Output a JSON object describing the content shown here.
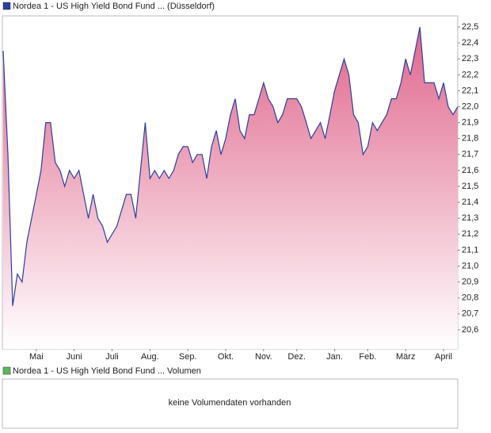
{
  "chart_data": {
    "type": "area",
    "categories": [
      "",
      null,
      null,
      null,
      null,
      null,
      null,
      "Mai",
      null,
      null,
      null,
      null,
      null,
      null,
      null,
      "Juni",
      null,
      null,
      null,
      null,
      null,
      null,
      null,
      "Juli",
      null,
      null,
      null,
      null,
      null,
      null,
      null,
      "Aug.",
      null,
      null,
      null,
      null,
      null,
      null,
      null,
      "Sep.",
      null,
      null,
      null,
      null,
      null,
      null,
      null,
      "Okt.",
      null,
      null,
      null,
      null,
      null,
      null,
      null,
      "Nov.",
      null,
      null,
      null,
      null,
      null,
      null,
      "Dez.",
      null,
      null,
      null,
      null,
      null,
      null,
      null,
      "Jan.",
      null,
      null,
      null,
      null,
      null,
      null,
      "Feb.",
      null,
      null,
      null,
      null,
      null,
      null,
      null,
      "März",
      null,
      null,
      null,
      null,
      null,
      null,
      null,
      "April",
      null,
      null,
      null
    ],
    "series": [
      {
        "name": "Nordea 1 - US High Yield Bond Fund ... (Düsseldorf)",
        "color": "#2a3f9e",
        "values": [
          22.35,
          21.7,
          20.75,
          20.95,
          20.9,
          21.15,
          21.3,
          21.45,
          21.6,
          21.9,
          21.9,
          21.65,
          21.6,
          21.5,
          21.6,
          21.55,
          21.6,
          21.45,
          21.3,
          21.45,
          21.3,
          21.25,
          21.15,
          21.2,
          21.25,
          21.35,
          21.45,
          21.45,
          21.3,
          21.6,
          21.9,
          21.55,
          21.6,
          21.55,
          21.6,
          21.55,
          21.6,
          21.7,
          21.75,
          21.75,
          21.65,
          21.7,
          21.7,
          21.55,
          21.75,
          21.85,
          21.7,
          21.8,
          21.95,
          22.05,
          21.85,
          21.8,
          21.95,
          21.95,
          22.05,
          22.15,
          22.05,
          22.0,
          21.9,
          21.95,
          22.05,
          22.05,
          22.05,
          22.0,
          21.9,
          21.8,
          21.85,
          21.9,
          21.8,
          21.95,
          22.1,
          22.2,
          22.3,
          22.2,
          21.95,
          21.9,
          21.7,
          21.75,
          21.9,
          21.85,
          21.9,
          21.95,
          22.05,
          22.05,
          22.15,
          22.3,
          22.2,
          22.35,
          22.5,
          22.15,
          22.15,
          22.15,
          22.05,
          22.15,
          22.0,
          21.95,
          22.0
        ]
      }
    ],
    "fill_color": "#e0668c",
    "ylim": [
      20.48,
      22.57
    ],
    "yticks": [
      {
        "value": 20.6,
        "label": "20,6"
      },
      {
        "value": 20.7,
        "label": "20,7"
      },
      {
        "value": 20.8,
        "label": "20,8"
      },
      {
        "value": 20.9,
        "label": "20,9"
      },
      {
        "value": 21.0,
        "label": "21,0"
      },
      {
        "value": 21.1,
        "label": "21,1"
      },
      {
        "value": 21.2,
        "label": "21,2"
      },
      {
        "value": 21.3,
        "label": "21,3"
      },
      {
        "value": 21.4,
        "label": "21,4"
      },
      {
        "value": 21.5,
        "label": "21,5"
      },
      {
        "value": 21.6,
        "label": "21,6"
      },
      {
        "value": 21.7,
        "label": "21,7"
      },
      {
        "value": 21.8,
        "label": "21,8"
      },
      {
        "value": 21.9,
        "label": "21,9"
      },
      {
        "value": 22.0,
        "label": "22,0"
      },
      {
        "value": 22.1,
        "label": "22,1"
      },
      {
        "value": 22.2,
        "label": "22,2"
      },
      {
        "value": 22.3,
        "label": "22,3"
      },
      {
        "value": 22.4,
        "label": "22,4"
      },
      {
        "value": 22.5,
        "label": "22,5"
      }
    ],
    "grid": false
  },
  "volume_panel": {
    "title": "Nordea 1 - US High Yield Bond Fund ... Volumen",
    "color": "#5cb85c",
    "message": "keine Volumendaten vorhanden"
  }
}
